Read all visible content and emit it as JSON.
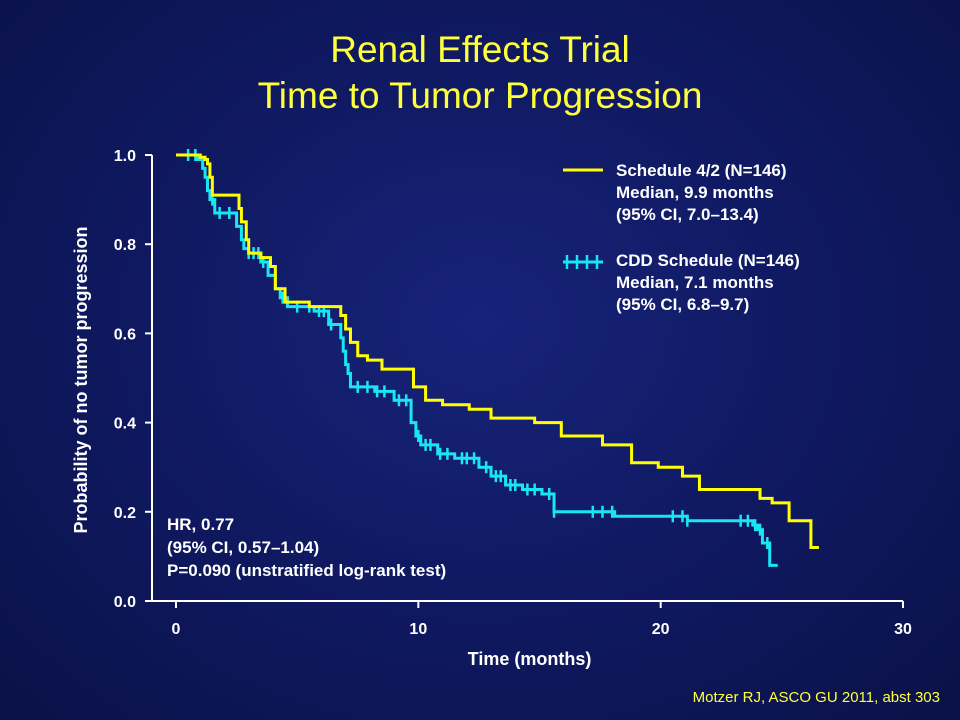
{
  "colors": {
    "schedule_4_2": "#ffff00",
    "cdd_schedule": "#19e6f5",
    "axis": "#ffffff",
    "title": "#ffff3c"
  },
  "chart_data": {
    "type": "line",
    "title": "Renal Effects Trial",
    "subtitle": "Time to Tumor Progression",
    "xlabel": "Time (months)",
    "ylabel": "Probability of no tumor progression",
    "xlim": [
      0,
      30
    ],
    "ylim": [
      0,
      1
    ],
    "x_ticks": [
      "0",
      "10",
      "20",
      "30"
    ],
    "y_ticks": [
      "0.0",
      "0.2",
      "0.4",
      "0.6",
      "0.8",
      "1.0"
    ],
    "legend_position": "top-right",
    "grid": false,
    "series": [
      {
        "name": "Schedule 4/2 (N=146)",
        "legend_lines": [
          "Schedule 4/2 (N=146)",
          "Median, 9.9 months",
          "(95% CI, 7.0–13.4)"
        ],
        "color": "#ffff00",
        "x": [
          0,
          1.0,
          1.2,
          1.3,
          1.4,
          1.5,
          2.6,
          2.7,
          2.9,
          3.0,
          3.5,
          3.9,
          4.1,
          4.5,
          5.5,
          6.8,
          7.0,
          7.2,
          7.5,
          7.9,
          8.5,
          9.8,
          10.3,
          11.0,
          12.1,
          13.0,
          14.8,
          15.9,
          17.6,
          18.8,
          19.9,
          20.9,
          21.6,
          24.1,
          24.6,
          25.3,
          26.2
        ],
        "y": [
          1.0,
          0.995,
          0.99,
          0.98,
          0.95,
          0.91,
          0.88,
          0.85,
          0.81,
          0.78,
          0.77,
          0.75,
          0.7,
          0.67,
          0.66,
          0.64,
          0.61,
          0.58,
          0.55,
          0.54,
          0.52,
          0.48,
          0.45,
          0.44,
          0.43,
          0.41,
          0.4,
          0.37,
          0.35,
          0.31,
          0.3,
          0.28,
          0.25,
          0.23,
          0.22,
          0.18,
          0.12
        ],
        "censor_x": []
      },
      {
        "name": "CDD Schedule (N=146)",
        "legend_lines": [
          "CDD Schedule (N=146)",
          "Median, 7.1 months",
          "(95% CI, 6.8–9.7)"
        ],
        "color": "#19e6f5",
        "x": [
          0,
          0.9,
          1.1,
          1.2,
          1.3,
          1.4,
          1.6,
          2.5,
          2.7,
          2.8,
          3.0,
          3.5,
          3.8,
          4.1,
          4.3,
          4.6,
          5.7,
          6.3,
          6.8,
          6.9,
          7.0,
          7.1,
          7.2,
          8.2,
          9.0,
          9.7,
          9.9,
          10.1,
          10.8,
          11.5,
          12.5,
          13.0,
          13.6,
          14.3,
          15.1,
          15.6,
          18.1,
          21.1,
          23.8,
          24.0,
          24.2,
          24.5
        ],
        "y": [
          1.0,
          0.99,
          0.97,
          0.95,
          0.92,
          0.9,
          0.87,
          0.84,
          0.81,
          0.79,
          0.78,
          0.76,
          0.73,
          0.7,
          0.68,
          0.66,
          0.65,
          0.62,
          0.59,
          0.56,
          0.53,
          0.51,
          0.48,
          0.47,
          0.45,
          0.4,
          0.37,
          0.35,
          0.33,
          0.32,
          0.3,
          0.28,
          0.26,
          0.25,
          0.24,
          0.2,
          0.19,
          0.18,
          0.17,
          0.16,
          0.13,
          0.08
        ],
        "censor_x": [
          0.5,
          0.8,
          1.5,
          1.8,
          2.2,
          3.0,
          3.2,
          3.4,
          3.6,
          4.4,
          5.0,
          5.5,
          5.9,
          6.1,
          6.4,
          7.5,
          7.9,
          8.3,
          8.6,
          9.2,
          9.5,
          10.0,
          10.3,
          10.5,
          10.9,
          11.2,
          11.8,
          12.0,
          12.3,
          12.8,
          13.2,
          13.4,
          13.8,
          14.0,
          14.5,
          14.8,
          15.4,
          15.6,
          17.2,
          17.6,
          18.0,
          20.5,
          20.9,
          21.1,
          23.3,
          23.6,
          23.9,
          24.1,
          24.4
        ]
      }
    ],
    "annotations": [
      "HR, 0.77",
      "(95% CI, 0.57–1.04)",
      "P=0.090 (unstratified log-rank test)"
    ]
  },
  "footnote": "Motzer RJ, ASCO GU 2011, abst 303"
}
